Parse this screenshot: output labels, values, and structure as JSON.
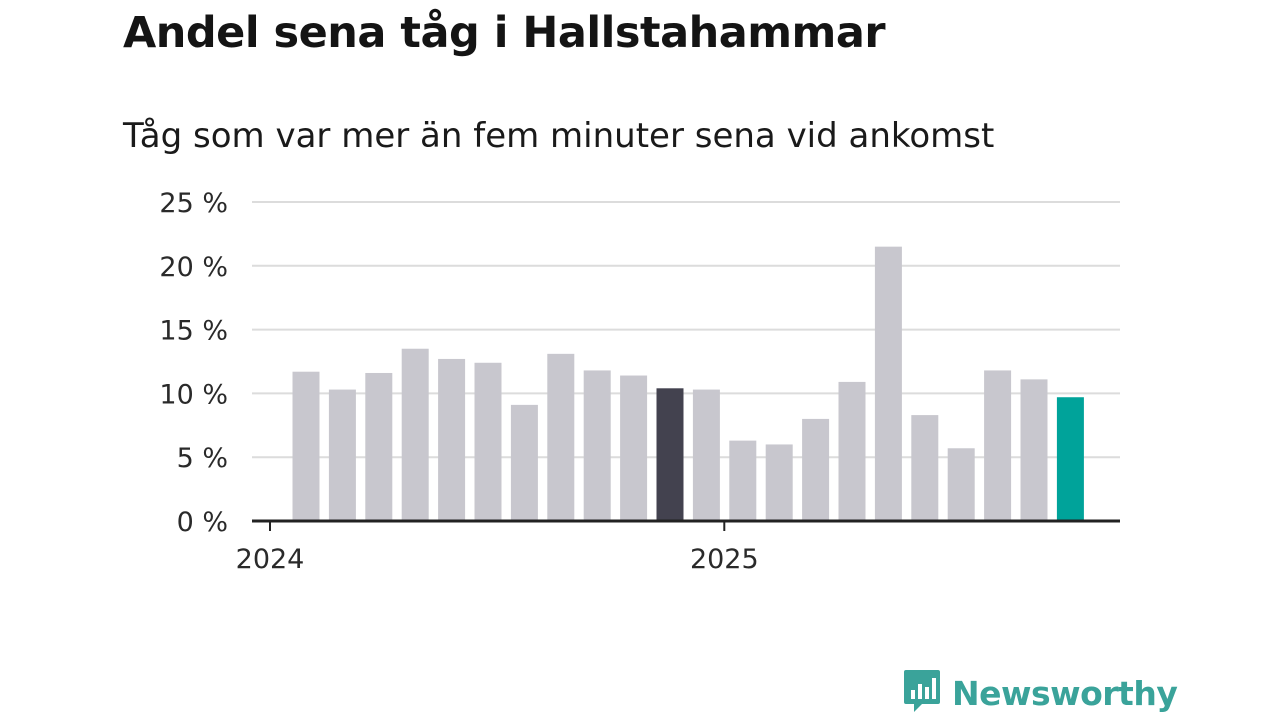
{
  "title": "Andel sena tåg i Hallstahammar",
  "subtitle": "Tåg som var mer än fem minuter sena vid ankomst",
  "brand": {
    "name": "Newsworthy",
    "color": "#3aa39a",
    "icon": "bar-chart-speech-bubble-icon"
  },
  "colors": {
    "bar": "#c8c7ce",
    "highlight_dark": "#43424f",
    "highlight_current": "#00a39a",
    "grid": "#dcdcdc",
    "axis": "#222222"
  },
  "chart_data": {
    "type": "bar",
    "title": "Andel sena tåg i Hallstahammar",
    "subtitle": "Tåg som var mer än fem minuter sena vid ankomst",
    "xlabel": "",
    "ylabel": "",
    "categories": [
      "2024-01",
      "2024-02",
      "2024-03",
      "2024-04",
      "2024-05",
      "2024-06",
      "2024-07",
      "2024-08",
      "2024-09",
      "2024-10",
      "2024-11",
      "2024-12",
      "2025-01",
      "2025-02",
      "2025-03",
      "2025-04",
      "2025-05",
      "2025-06",
      "2025-07",
      "2025-08",
      "2025-09",
      "2025-10"
    ],
    "values": [
      11.7,
      10.3,
      11.6,
      13.5,
      12.7,
      12.4,
      9.1,
      13.1,
      11.8,
      11.4,
      10.4,
      10.3,
      6.3,
      6.0,
      8.0,
      10.9,
      21.5,
      8.3,
      5.7,
      11.8,
      11.1,
      9.7
    ],
    "highlight": {
      "2024-11": "dark",
      "2025-10": "current"
    },
    "ylim": [
      0,
      25
    ],
    "y_ticks": [
      0,
      5,
      10,
      15,
      20,
      25
    ],
    "y_tick_labels": [
      "0 %",
      "5 %",
      "10 %",
      "15 %",
      "20 %",
      "25 %"
    ],
    "x_ticks": [
      {
        "label": "2024",
        "at": "2024-01"
      },
      {
        "label": "2025",
        "at": "2025-01"
      }
    ],
    "grid": true,
    "legend": "none"
  }
}
